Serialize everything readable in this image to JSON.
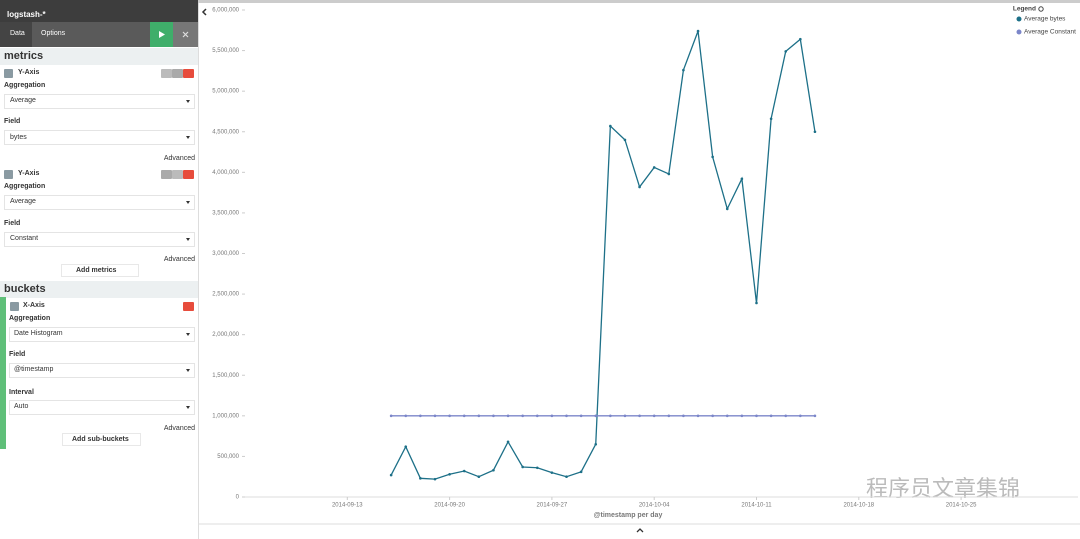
{
  "sidebar": {
    "index": "logstash-*",
    "tabs": [
      "Data",
      "Options"
    ],
    "metrics_heading": "metrics",
    "metrics": [
      {
        "label": "Y-Axis",
        "aggregation_label": "Aggregation",
        "aggregation": "Average",
        "field_label": "Field",
        "field": "bytes",
        "advanced": "Advanced"
      },
      {
        "label": "Y-Axis",
        "aggregation_label": "Aggregation",
        "aggregation": "Average",
        "field_label": "Field",
        "field": "Constant",
        "advanced": "Advanced"
      }
    ],
    "add_metrics": "Add metrics",
    "buckets_heading": "buckets",
    "bucket": {
      "label": "X-Axis",
      "aggregation_label": "Aggregation",
      "aggregation": "Date Histogram",
      "field_label": "Field",
      "field": "@timestamp",
      "interval_label": "Interval",
      "interval": "Auto",
      "advanced": "Advanced"
    },
    "add_sub_buckets": "Add sub-buckets"
  },
  "chart_data": {
    "type": "line",
    "x_label": "@timestamp per day",
    "legend_title": "Legend",
    "x": [
      "2014-09-16",
      "2014-09-17",
      "2014-09-18",
      "2014-09-19",
      "2014-09-20",
      "2014-09-21",
      "2014-09-22",
      "2014-09-23",
      "2014-09-24",
      "2014-09-25",
      "2014-09-26",
      "2014-09-27",
      "2014-09-28",
      "2014-09-29",
      "2014-09-30",
      "2014-10-01",
      "2014-10-02",
      "2014-10-03",
      "2014-10-04",
      "2014-10-05",
      "2014-10-06",
      "2014-10-07",
      "2014-10-08",
      "2014-10-09",
      "2014-10-10",
      "2014-10-11",
      "2014-10-12",
      "2014-10-13",
      "2014-10-14",
      "2014-10-15"
    ],
    "series": [
      {
        "name": "Average bytes",
        "color": "#1d7088",
        "values": [
          270000,
          620000,
          230000,
          220000,
          280000,
          320000,
          250000,
          330000,
          680000,
          370000,
          360000,
          300000,
          250000,
          310000,
          650000,
          4570000,
          4400000,
          3820000,
          4060000,
          3980000,
          5260000,
          5740000,
          4190000,
          3550000,
          3920000,
          2390000,
          4660000,
          5490000,
          5640000,
          4500000
        ]
      },
      {
        "name": "Average Constant",
        "color": "#7b86c9",
        "values": [
          1000000,
          1000000,
          1000000,
          1000000,
          1000000,
          1000000,
          1000000,
          1000000,
          1000000,
          1000000,
          1000000,
          1000000,
          1000000,
          1000000,
          1000000,
          1000000,
          1000000,
          1000000,
          1000000,
          1000000,
          1000000,
          1000000,
          1000000,
          1000000,
          1000000,
          1000000,
          1000000,
          1000000,
          1000000,
          1000000
        ]
      }
    ],
    "xlim": [
      "2014-09-06",
      "2014-11-02"
    ],
    "xticks": [
      "2014-09-13",
      "2014-09-20",
      "2014-09-27",
      "2014-10-04",
      "2014-10-11",
      "2014-10-18",
      "2014-10-25"
    ],
    "ylim": [
      0,
      6000000
    ],
    "yticks": [
      0,
      {
        "value": 500000,
        "label": "500,000"
      },
      {
        "value": 1000000,
        "label": "1,000,000"
      },
      {
        "value": 1500000,
        "label": "1,500,000"
      },
      {
        "value": 2000000,
        "label": "2,000,000"
      },
      {
        "value": 2500000,
        "label": "2,500,000"
      },
      {
        "value": 3000000,
        "label": "3,000,000"
      },
      {
        "value": 3500000,
        "label": "3,500,000"
      },
      {
        "value": 4000000,
        "label": "4,000,000"
      },
      {
        "value": 4500000,
        "label": "4,500,000"
      },
      {
        "value": 5000000,
        "label": "5,000,000"
      },
      {
        "value": 5500000,
        "label": "5,500,000"
      },
      {
        "value": 6000000,
        "label": "6,000,000"
      }
    ],
    "legend_position": "top-right"
  },
  "watermark": "程序员文章集锦"
}
